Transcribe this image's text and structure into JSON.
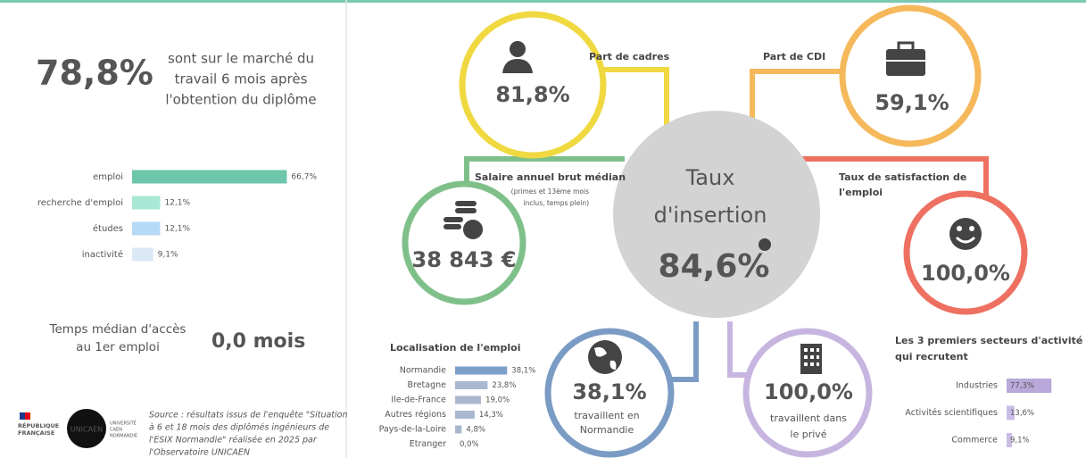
{
  "headline": {
    "value": "78,8%",
    "text": [
      "sont sur le marché du",
      "travail 6 mois après",
      "l'obtention du diplôme"
    ]
  },
  "status": [
    {
      "label": "emploi",
      "value": 66.7,
      "value_label": "66,7%",
      "color": "#6dc5aa"
    },
    {
      "label": "recherche d'emploi",
      "value": 12.1,
      "value_label": "12,1%",
      "color": "#a9e8d6"
    },
    {
      "label": "études",
      "value": 12.1,
      "value_label": "12,1%",
      "color": "#b6d9f6"
    },
    {
      "label": "inactivité",
      "value": 9.1,
      "value_label": "9,1%",
      "color": "#dbe8f6"
    }
  ],
  "median_access": {
    "label": [
      "Temps médian d'accès",
      "au 1er emploi"
    ],
    "value": "0,0 mois"
  },
  "source": [
    "Source : résultats issus de l'enquête \"Situation",
    "à 6 et 18 mois des diplômés ingénieurs de",
    "l'ESIX Normandie\" réalisée en 2025 par",
    "l'Observatoire UNICAEN"
  ],
  "logos": {
    "republique": [
      "RÉPUBLIQUE",
      "FRANÇAISE"
    ],
    "unicaen": "UNICAEN",
    "universite": [
      "UNIVERSITÉ",
      "CAEN",
      "NORMANDIE"
    ]
  },
  "center": {
    "title": [
      "Taux",
      "d'insertion"
    ],
    "value": "84,6%"
  },
  "cadres": {
    "label": "Part de cadres",
    "value": "81,8%"
  },
  "cdi": {
    "label": "Part de CDI",
    "value": "59,1%"
  },
  "salaire": {
    "label": "Salaire annuel brut médian",
    "note": [
      "(primes et 13ème mois",
      "inclus, temps plein)"
    ],
    "value": "38 843 €"
  },
  "satisfaction": {
    "label": [
      "Taux de satisfaction de",
      "l'emploi"
    ],
    "value": "100,0%"
  },
  "normandie": {
    "value": "38,1%",
    "text": [
      "travaillent en",
      "Normandie"
    ]
  },
  "prive": {
    "value": "100,0%",
    "text": [
      "travaillent dans",
      "le privé"
    ]
  },
  "localisation": {
    "title": "Localisation de l'emploi",
    "items": [
      {
        "label": "Normandie",
        "value": 38.1,
        "value_label": "38,1%",
        "color": "#7f9fcb"
      },
      {
        "label": "Bretagne",
        "value": 23.8,
        "value_label": "23,8%",
        "color": "#a9b8cf"
      },
      {
        "label": "Ile-de-France",
        "value": 19.0,
        "value_label": "19,0%",
        "color": "#a9b8cf"
      },
      {
        "label": "Autres régions",
        "value": 14.3,
        "value_label": "14,3%",
        "color": "#a9b8cf"
      },
      {
        "label": "Pays-de-la-Loire",
        "value": 4.8,
        "value_label": "4,8%",
        "color": "#a9b8cf"
      },
      {
        "label": "Etranger",
        "value": 0.0,
        "value_label": "0,0%",
        "color": "#a9b8cf"
      }
    ]
  },
  "sectors": {
    "title": [
      "Les 3 premiers secteurs d'activité",
      "qui recrutent"
    ],
    "items": [
      {
        "label": "Industries",
        "value": 77.3,
        "value_label": "77,3%",
        "color": "#b9a8da"
      },
      {
        "label": "Activités scientifiques",
        "value": 13.6,
        "value_label": "13,6%",
        "color": "#c9bde6"
      },
      {
        "label": "Commerce",
        "value": 9.1,
        "value_label": "9,1%",
        "color": "#c9bde6"
      }
    ]
  }
}
